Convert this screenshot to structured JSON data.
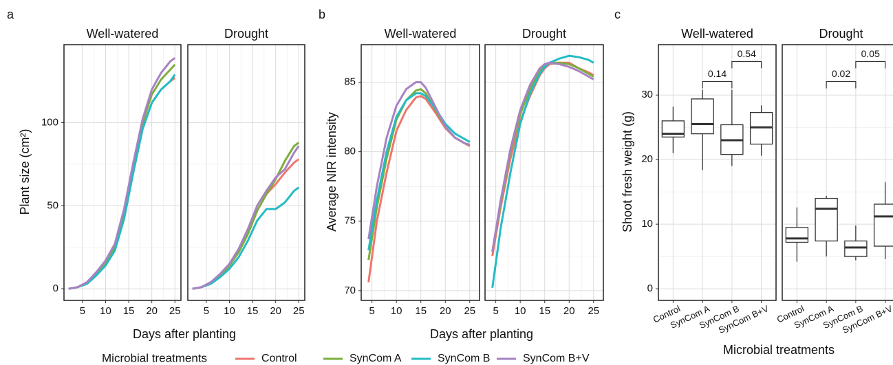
{
  "legend": {
    "title": "Microbial treatments",
    "items": [
      {
        "name": "Control",
        "color": "#EE766F"
      },
      {
        "name": "SynCom A",
        "color": "#7CAE3C"
      },
      {
        "name": "SynCom B",
        "color": "#23BCC4"
      },
      {
        "name": "SynCom B+V",
        "color": "#A782C3"
      }
    ]
  },
  "chart_data": [
    {
      "type": "line",
      "panel": "a",
      "ylabel": "Plant size (cm²)",
      "xlabel": "Days after planting",
      "xlim": [
        1,
        26.3
      ],
      "xticks": [
        5,
        10,
        15,
        20,
        25
      ],
      "ylim": [
        -7,
        147
      ],
      "yticks": [
        0,
        50,
        100
      ],
      "grid": true,
      "x": [
        2,
        4,
        6,
        8,
        10,
        12,
        14,
        16,
        18,
        20,
        22,
        24,
        25
      ],
      "facets": [
        {
          "title": "Well-watered",
          "series": [
            {
              "values": [
                0,
                1,
                4,
                9,
                15,
                25,
                45,
                72,
                97,
                112,
                120,
                125,
                127
              ]
            },
            {
              "values": [
                0,
                1,
                4,
                9,
                15,
                25,
                46,
                74,
                100,
                117,
                126,
                132,
                135
              ]
            },
            {
              "values": [
                0,
                1,
                3,
                8,
                14,
                23,
                42,
                70,
                96,
                112,
                120,
                125,
                129
              ]
            },
            {
              "values": [
                0,
                1,
                4,
                10,
                17,
                27,
                48,
                76,
                102,
                120,
                130,
                137,
                139
              ]
            }
          ]
        },
        {
          "title": "Drought",
          "series": [
            {
              "values": [
                0,
                1,
                4,
                8,
                14,
                22,
                33,
                47,
                57,
                63,
                70,
                76,
                78
              ]
            },
            {
              "values": [
                0,
                1,
                4,
                8,
                14,
                22,
                33,
                47,
                57,
                66,
                77,
                86,
                88
              ]
            },
            {
              "values": [
                0,
                1,
                3,
                7,
                12,
                19,
                29,
                41,
                48,
                48,
                52,
                59,
                61
              ]
            },
            {
              "values": [
                0,
                1,
                4,
                9,
                15,
                24,
                36,
                50,
                59,
                67,
                72,
                82,
                86
              ]
            }
          ]
        }
      ]
    },
    {
      "type": "line",
      "panel": "b",
      "ylabel": "Average NIR intensity",
      "xlabel": "Days after planting",
      "xlim": [
        2.8,
        27
      ],
      "xticks": [
        5,
        10,
        15,
        20,
        25
      ],
      "ylim": [
        69.3,
        87.7
      ],
      "yticks": [
        70,
        75,
        80,
        85
      ],
      "grid": true,
      "x": [
        4.3,
        6,
        8,
        10,
        12,
        14,
        15,
        16,
        18,
        20,
        22,
        24,
        25
      ],
      "facets": [
        {
          "title": "Well-watered",
          "series": [
            {
              "values": [
                70.6,
                75,
                78.5,
                81.5,
                83,
                83.9,
                84,
                83.8,
                82.8,
                81.7,
                81,
                80.6,
                80.4
              ]
            },
            {
              "values": [
                72.2,
                76,
                79.5,
                82.3,
                83.7,
                84.4,
                84.5,
                84.2,
                83,
                81.8,
                81,
                80.6,
                80.5
              ]
            },
            {
              "values": [
                72.9,
                76.5,
                80,
                82.5,
                83.7,
                84.2,
                84.2,
                84,
                83.1,
                82,
                81.3,
                80.9,
                80.7
              ]
            },
            {
              "values": [
                73.7,
                77.5,
                81,
                83.3,
                84.5,
                85,
                85,
                84.6,
                83.2,
                81.8,
                81,
                80.6,
                80.5
              ]
            }
          ]
        },
        {
          "title": "Drought",
          "series": [
            {
              "values": [
                72.5,
                76,
                79.5,
                82.2,
                84,
                85.5,
                86,
                86.3,
                86.4,
                86.4,
                86,
                85.7,
                85.5
              ]
            },
            {
              "values": [
                72.8,
                76.3,
                80,
                82.7,
                84.5,
                85.8,
                86.2,
                86.4,
                86.4,
                86.3,
                86,
                85.6,
                85.4
              ]
            },
            {
              "values": [
                70.2,
                74.5,
                78.5,
                82,
                84.2,
                85.6,
                86.1,
                86.4,
                86.7,
                86.9,
                86.8,
                86.6,
                86.4
              ]
            },
            {
              "values": [
                72.8,
                76.5,
                80.2,
                83,
                84.8,
                86,
                86.3,
                86.4,
                86.3,
                86.1,
                85.8,
                85.4,
                85.2
              ]
            }
          ]
        }
      ]
    },
    {
      "type": "box",
      "panel": "c",
      "ylabel": "Shoot fresh weight (g)",
      "xlabel": "Microbial treatments",
      "categories": [
        "Control",
        "SynCom A",
        "SynCom B",
        "SynCom B+V"
      ],
      "ylim": [
        -1.8,
        37.8
      ],
      "yticks": [
        0,
        10,
        20,
        30
      ],
      "grid": true,
      "facets": [
        {
          "title": "Well-watered",
          "boxes": [
            {
              "min": 21,
              "q1": 23.5,
              "median": 24,
              "q3": 26,
              "max": 28.2
            },
            {
              "min": 18.4,
              "q1": 24,
              "median": 25.5,
              "q3": 29.4,
              "max": 30.8
            },
            {
              "min": 19,
              "q1": 20.8,
              "median": 23,
              "q3": 25.4,
              "max": 30.8
            },
            {
              "min": 20.6,
              "q1": 22.4,
              "median": 25,
              "q3": 27.3,
              "max": 28.4
            }
          ],
          "comparisons": [
            {
              "groups": [
                "SynCom A",
                "SynCom B"
              ],
              "y": 32.1,
              "label": 0.14
            },
            {
              "groups": [
                "SynCom B",
                "SynCom B+V"
              ],
              "y": 35.2,
              "label": 0.54
            }
          ]
        },
        {
          "title": "Drought",
          "boxes": [
            {
              "min": 4.2,
              "q1": 7.2,
              "median": 7.8,
              "q3": 9.5,
              "max": 12.6
            },
            {
              "min": 5,
              "q1": 7.4,
              "median": 12.4,
              "q3": 14,
              "max": 14.4
            },
            {
              "min": 4.4,
              "q1": 5,
              "median": 6.4,
              "q3": 7.4,
              "max": 9.8
            },
            {
              "min": 4.6,
              "q1": 6.6,
              "median": 11.2,
              "q3": 13.1,
              "max": 16.5
            }
          ],
          "comparisons": [
            {
              "groups": [
                "SynCom A",
                "SynCom B"
              ],
              "y": 32.1,
              "label": 0.02
            },
            {
              "groups": [
                "SynCom B",
                "SynCom B+V"
              ],
              "y": 35.2,
              "label": 0.05
            }
          ]
        }
      ]
    }
  ]
}
